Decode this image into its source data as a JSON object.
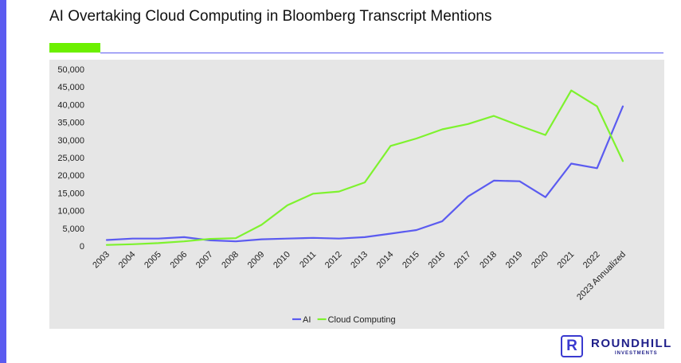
{
  "page": {
    "title": "AI Overtaking Cloud Computing in Bloomberg Transcript Mentions"
  },
  "colors": {
    "side_bar": "#5b5bf0",
    "accent": "#6cf000",
    "ai_series": "#5b5bf0",
    "cloud_series": "#7ef22e",
    "plot_bg": "#e6e6e6"
  },
  "logo": {
    "mark": "R",
    "name": "ROUNDHILL",
    "subtitle": "INVESTMENTS"
  },
  "chart_data": {
    "type": "line",
    "title": "",
    "xlabel": "",
    "ylabel": "",
    "categories": [
      "2003",
      "2004",
      "2005",
      "2006",
      "2007",
      "2008",
      "2009",
      "2010",
      "2011",
      "2012",
      "2013",
      "2014",
      "2015",
      "2016",
      "2017",
      "2018",
      "2019",
      "2020",
      "2021",
      "2022",
      "2023 Annualized"
    ],
    "series": [
      {
        "name": "AI",
        "values": [
          1700,
          2100,
          2100,
          2500,
          1600,
          1300,
          1900,
          2100,
          2300,
          2100,
          2500,
          3500,
          4500,
          7000,
          14000,
          18500,
          18300,
          13800,
          23300,
          22000,
          39500
        ]
      },
      {
        "name": "Cloud Computing",
        "values": [
          300,
          500,
          800,
          1300,
          2000,
          2200,
          6000,
          11500,
          14800,
          15400,
          18000,
          28300,
          30400,
          33000,
          34500,
          36800,
          34000,
          31400,
          44000,
          39500,
          24000
        ]
      }
    ],
    "ylim": [
      0,
      50000
    ],
    "yticks": [
      "50,000",
      "45,000",
      "40,000",
      "35,000",
      "30,000",
      "25,000",
      "20,000",
      "15,000",
      "10,000",
      "5,000",
      "0"
    ],
    "grid": false,
    "legend": "bottom"
  }
}
